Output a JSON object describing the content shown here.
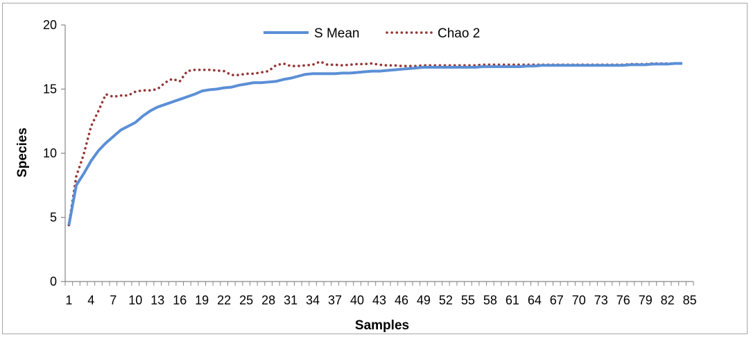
{
  "chart_data": {
    "type": "line",
    "xlabel": "Samples",
    "ylabel": "Species",
    "ylim": [
      0,
      20
    ],
    "yticks": [
      0,
      5,
      10,
      15,
      20
    ],
    "x_tick_labels": [
      "1",
      "4",
      "7",
      "10",
      "13",
      "16",
      "19",
      "22",
      "25",
      "28",
      "31",
      "34",
      "37",
      "40",
      "43",
      "46",
      "49",
      "52",
      "55",
      "58",
      "61",
      "64",
      "67",
      "70",
      "73",
      "76",
      "79",
      "82",
      "85"
    ],
    "x": [
      1,
      2,
      3,
      4,
      5,
      6,
      7,
      8,
      9,
      10,
      11,
      12,
      13,
      14,
      15,
      16,
      17,
      18,
      19,
      20,
      21,
      22,
      23,
      24,
      25,
      26,
      27,
      28,
      29,
      30,
      31,
      32,
      33,
      34,
      35,
      36,
      37,
      38,
      39,
      40,
      41,
      42,
      43,
      44,
      45,
      46,
      47,
      48,
      49,
      50,
      51,
      52,
      53,
      54,
      55,
      56,
      57,
      58,
      59,
      60,
      61,
      62,
      63,
      64,
      65,
      66,
      67,
      68,
      69,
      70,
      71,
      72,
      73,
      74,
      75,
      76,
      77,
      78,
      79,
      80,
      81,
      82,
      83,
      84
    ],
    "grid": false,
    "legend_position": "top-center",
    "series": [
      {
        "name": "S Mean",
        "color": "#5b8fd6",
        "style": "solid",
        "values": [
          4.4,
          7.5,
          8.4,
          9.4,
          10.2,
          10.8,
          11.3,
          11.8,
          12.1,
          12.4,
          12.9,
          13.3,
          13.6,
          13.8,
          14.0,
          14.2,
          14.4,
          14.6,
          14.85,
          14.95,
          15.0,
          15.1,
          15.15,
          15.3,
          15.4,
          15.5,
          15.5,
          15.55,
          15.6,
          15.75,
          15.85,
          16.0,
          16.15,
          16.2,
          16.2,
          16.2,
          16.2,
          16.25,
          16.25,
          16.3,
          16.35,
          16.4,
          16.4,
          16.45,
          16.5,
          16.55,
          16.6,
          16.65,
          16.7,
          16.7,
          16.7,
          16.7,
          16.7,
          16.7,
          16.7,
          16.7,
          16.75,
          16.75,
          16.75,
          16.75,
          16.75,
          16.75,
          16.8,
          16.8,
          16.85,
          16.85,
          16.85,
          16.85,
          16.85,
          16.85,
          16.85,
          16.85,
          16.85,
          16.85,
          16.85,
          16.85,
          16.9,
          16.9,
          16.9,
          16.95,
          16.95,
          16.95,
          17.0,
          17.0
        ]
      },
      {
        "name": "Chao 2",
        "color": "#953735",
        "style": "dotted",
        "values": [
          4.4,
          8.2,
          9.9,
          12.1,
          13.3,
          14.6,
          14.4,
          14.5,
          14.5,
          14.8,
          14.9,
          14.9,
          15.0,
          15.5,
          15.8,
          15.6,
          16.4,
          16.5,
          16.5,
          16.5,
          16.45,
          16.4,
          16.1,
          16.1,
          16.2,
          16.2,
          16.3,
          16.4,
          16.85,
          17.0,
          16.8,
          16.8,
          16.85,
          16.9,
          17.15,
          16.9,
          16.9,
          16.85,
          16.9,
          16.95,
          16.95,
          17.0,
          16.9,
          16.85,
          16.85,
          16.8,
          16.8,
          16.8,
          16.85,
          16.85,
          16.85,
          16.85,
          16.85,
          16.85,
          16.85,
          16.85,
          16.9,
          16.9,
          16.9,
          16.9,
          16.9,
          16.9,
          16.9,
          16.9,
          16.9,
          16.9,
          16.9,
          16.9,
          16.9,
          16.9,
          16.9,
          16.9,
          16.9,
          16.9,
          16.9,
          16.9,
          16.95,
          16.95,
          16.95,
          17.0,
          17.0,
          17.0,
          17.0,
          17.0
        ]
      }
    ]
  }
}
